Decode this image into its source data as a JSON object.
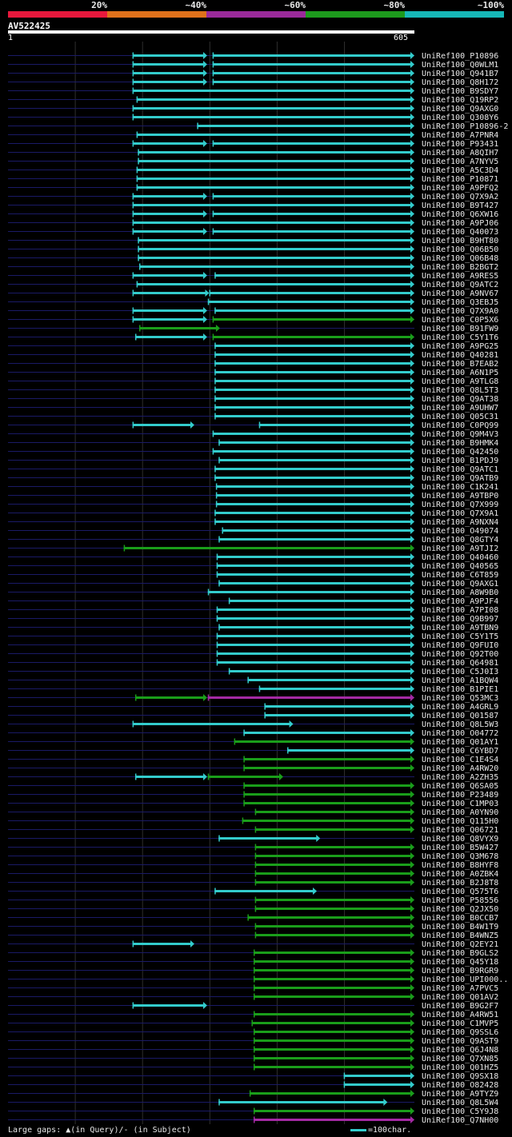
{
  "legend": {
    "segments": [
      {
        "label": "20%",
        "color": "#e8183c"
      },
      {
        "label": "~40%",
        "color": "#e0711b"
      },
      {
        "label": "~60%",
        "color": "#9b2a9b"
      },
      {
        "label": "~80%",
        "color": "#1d9b1d"
      },
      {
        "label": "~100%",
        "color": "#16b8b8"
      }
    ]
  },
  "query": {
    "name": "AV522425",
    "start": "1",
    "end": "605"
  },
  "colors": {
    "cyan": "#33cccc",
    "green": "#1a9e1a",
    "purple": "#a52aa5",
    "track": "#1a1a66",
    "grid": "#2e2e2e"
  },
  "hits": [
    {
      "name": "UniRef100_P10896",
      "segs": [
        [
          186,
          297,
          "c"
        ],
        [
          305,
          605,
          "c"
        ]
      ]
    },
    {
      "name": "UniRef100_Q0WLM1",
      "segs": [
        [
          186,
          297,
          "c"
        ],
        [
          305,
          605,
          "c"
        ]
      ]
    },
    {
      "name": "UniRef100_Q941B7",
      "segs": [
        [
          186,
          297,
          "c"
        ],
        [
          305,
          605,
          "c"
        ]
      ]
    },
    {
      "name": "UniRef100_Q8H172",
      "segs": [
        [
          186,
          297,
          "c"
        ],
        [
          305,
          605,
          "c"
        ]
      ]
    },
    {
      "name": "UniRef100_B9SDY7",
      "segs": [
        [
          186,
          605,
          "c"
        ]
      ]
    },
    {
      "name": "UniRef100_Q19RP2",
      "segs": [
        [
          192,
          605,
          "c"
        ]
      ]
    },
    {
      "name": "UniRef100_Q9AXG0",
      "segs": [
        [
          186,
          605,
          "c"
        ]
      ]
    },
    {
      "name": "UniRef100_Q308Y6",
      "segs": [
        [
          186,
          605,
          "c"
        ]
      ]
    },
    {
      "name": "UniRef100_P10896-2",
      "segs": [
        [
          282,
          605,
          "c"
        ]
      ]
    },
    {
      "name": "UniRef100_A7PNR4",
      "segs": [
        [
          192,
          605,
          "c"
        ]
      ]
    },
    {
      "name": "UniRef100_P93431",
      "segs": [
        [
          186,
          297,
          "c"
        ],
        [
          305,
          605,
          "c"
        ]
      ]
    },
    {
      "name": "UniRef100_A8QIH7",
      "segs": [
        [
          194,
          605,
          "c"
        ]
      ]
    },
    {
      "name": "UniRef100_A7NYV5",
      "segs": [
        [
          194,
          605,
          "c"
        ]
      ]
    },
    {
      "name": "UniRef100_A5C3D4",
      "segs": [
        [
          192,
          605,
          "c"
        ]
      ]
    },
    {
      "name": "UniRef100_P10871",
      "segs": [
        [
          192,
          605,
          "c"
        ]
      ]
    },
    {
      "name": "UniRef100_A9PFQ2",
      "segs": [
        [
          192,
          605,
          "c"
        ]
      ]
    },
    {
      "name": "UniRef100_Q7X9A2",
      "segs": [
        [
          186,
          297,
          "c"
        ],
        [
          305,
          605,
          "c"
        ]
      ]
    },
    {
      "name": "UniRef100_B9T427",
      "segs": [
        [
          186,
          605,
          "c"
        ]
      ]
    },
    {
      "name": "UniRef100_Q6XW16",
      "segs": [
        [
          186,
          297,
          "c"
        ],
        [
          305,
          605,
          "c"
        ]
      ]
    },
    {
      "name": "UniRef100_A9PJ06",
      "segs": [
        [
          186,
          605,
          "c"
        ]
      ]
    },
    {
      "name": "UniRef100_Q40073",
      "segs": [
        [
          186,
          297,
          "c"
        ],
        [
          305,
          605,
          "c"
        ]
      ]
    },
    {
      "name": "UniRef100_B9HT80",
      "segs": [
        [
          194,
          605,
          "c"
        ]
      ]
    },
    {
      "name": "UniRef100_Q06B50",
      "segs": [
        [
          194,
          605,
          "c"
        ]
      ]
    },
    {
      "name": "UniRef100_Q06B48",
      "segs": [
        [
          194,
          605,
          "c"
        ]
      ]
    },
    {
      "name": "UniRef100_B2BGT2",
      "segs": [
        [
          196,
          605,
          "c"
        ]
      ]
    },
    {
      "name": "UniRef100_A9RES5",
      "segs": [
        [
          186,
          297,
          "c"
        ],
        [
          308,
          605,
          "c"
        ]
      ]
    },
    {
      "name": "UniRef100_Q9ATC2",
      "segs": [
        [
          192,
          605,
          "c"
        ]
      ]
    },
    {
      "name": "UniRef100_A9NV67",
      "segs": [
        [
          186,
          300,
          "c"
        ],
        [
          300,
          605,
          "c"
        ]
      ]
    },
    {
      "name": "UniRef100_Q3EBJ5",
      "segs": [
        [
          298,
          605,
          "c"
        ]
      ]
    },
    {
      "name": "UniRef100_Q7X9A0",
      "segs": [
        [
          186,
          297,
          "c"
        ],
        [
          308,
          605,
          "c"
        ]
      ]
    },
    {
      "name": "UniRef100_C0P5X6",
      "segs": [
        [
          186,
          297,
          "c"
        ],
        [
          305,
          605,
          "g"
        ]
      ]
    },
    {
      "name": "UniRef100_B91FW9",
      "segs": [
        [
          196,
          316,
          "g"
        ]
      ]
    },
    {
      "name": "UniRef100_C5Y1T6",
      "segs": [
        [
          190,
          297,
          "c"
        ],
        [
          305,
          605,
          "g"
        ]
      ]
    },
    {
      "name": "UniRef100_A9PG25",
      "segs": [
        [
          308,
          605,
          "c"
        ]
      ]
    },
    {
      "name": "UniRef100_Q40281",
      "segs": [
        [
          308,
          605,
          "c"
        ]
      ]
    },
    {
      "name": "UniRef100_B7EAB2",
      "segs": [
        [
          308,
          605,
          "c"
        ]
      ]
    },
    {
      "name": "UniRef100_A6N1P5",
      "segs": [
        [
          308,
          605,
          "c"
        ]
      ]
    },
    {
      "name": "UniRef100_A9TLG8",
      "segs": [
        [
          308,
          605,
          "c"
        ]
      ]
    },
    {
      "name": "UniRef100_Q8L5T3",
      "segs": [
        [
          308,
          605,
          "c"
        ]
      ]
    },
    {
      "name": "UniRef100_Q9AT38",
      "segs": [
        [
          308,
          605,
          "c"
        ]
      ]
    },
    {
      "name": "UniRef100_A9UHW7",
      "segs": [
        [
          308,
          605,
          "c"
        ]
      ]
    },
    {
      "name": "UniRef100_Q05C31",
      "segs": [
        [
          308,
          605,
          "c"
        ]
      ]
    },
    {
      "name": "UniRef100_C0PQ99",
      "segs": [
        [
          186,
          278,
          "c"
        ],
        [
          374,
          605,
          "c"
        ]
      ]
    },
    {
      "name": "UniRef100_Q9M4V3",
      "segs": [
        [
          305,
          605,
          "c"
        ]
      ]
    },
    {
      "name": "UniRef100_B9HMK4",
      "segs": [
        [
          314,
          605,
          "c"
        ]
      ]
    },
    {
      "name": "UniRef100_Q42450",
      "segs": [
        [
          305,
          605,
          "c"
        ]
      ]
    },
    {
      "name": "UniRef100_B1PDJ9",
      "segs": [
        [
          314,
          605,
          "c"
        ]
      ]
    },
    {
      "name": "UniRef100_Q9ATC1",
      "segs": [
        [
          308,
          605,
          "c"
        ]
      ]
    },
    {
      "name": "UniRef100_Q9ATB9",
      "segs": [
        [
          308,
          605,
          "c"
        ]
      ]
    },
    {
      "name": "UniRef100_C1K241",
      "segs": [
        [
          310,
          605,
          "c"
        ]
      ]
    },
    {
      "name": "UniRef100_A9TBP0",
      "segs": [
        [
          310,
          605,
          "c"
        ]
      ]
    },
    {
      "name": "UniRef100_Q7X999",
      "segs": [
        [
          310,
          605,
          "c"
        ]
      ]
    },
    {
      "name": "UniRef100_Q7X9A1",
      "segs": [
        [
          308,
          605,
          "c"
        ]
      ]
    },
    {
      "name": "UniRef100_A9NXN4",
      "segs": [
        [
          308,
          605,
          "c"
        ]
      ]
    },
    {
      "name": "UniRef100_O49074",
      "segs": [
        [
          319,
          605,
          "c"
        ]
      ]
    },
    {
      "name": "UniRef100_Q8GTY4",
      "segs": [
        [
          314,
          605,
          "c"
        ]
      ]
    },
    {
      "name": "UniRef100_A9TJI2",
      "segs": [
        [
          173,
          605,
          "g"
        ]
      ]
    },
    {
      "name": "UniRef100_Q40460",
      "segs": [
        [
          311,
          605,
          "c"
        ]
      ]
    },
    {
      "name": "UniRef100_Q40565",
      "segs": [
        [
          311,
          605,
          "c"
        ]
      ]
    },
    {
      "name": "UniRef100_C6T859",
      "segs": [
        [
          311,
          605,
          "c"
        ]
      ]
    },
    {
      "name": "UniRef100_Q9AXG1",
      "segs": [
        [
          314,
          605,
          "c"
        ]
      ]
    },
    {
      "name": "UniRef100_A8W9B0",
      "segs": [
        [
          298,
          605,
          "c"
        ]
      ]
    },
    {
      "name": "UniRef100_A9PJF4",
      "segs": [
        [
          329,
          605,
          "c"
        ]
      ]
    },
    {
      "name": "UniRef100_A7PI08",
      "segs": [
        [
          311,
          605,
          "c"
        ]
      ]
    },
    {
      "name": "UniRef100_Q9B997",
      "segs": [
        [
          311,
          605,
          "c"
        ]
      ]
    },
    {
      "name": "UniRef100_A9TBN9",
      "segs": [
        [
          314,
          605,
          "c"
        ]
      ]
    },
    {
      "name": "UniRef100_C5Y1T5",
      "segs": [
        [
          311,
          605,
          "c"
        ]
      ]
    },
    {
      "name": "UniRef100_Q9FUI0",
      "segs": [
        [
          311,
          605,
          "c"
        ]
      ]
    },
    {
      "name": "UniRef100_Q92T00",
      "segs": [
        [
          311,
          605,
          "c"
        ]
      ]
    },
    {
      "name": "UniRef100_Q64981",
      "segs": [
        [
          311,
          605,
          "c"
        ]
      ]
    },
    {
      "name": "UniRef100_C5J0I3",
      "segs": [
        [
          329,
          605,
          "c"
        ]
      ]
    },
    {
      "name": "UniRef100_A1BQW4",
      "segs": [
        [
          357,
          605,
          "c"
        ]
      ]
    },
    {
      "name": "UniRef100_B1PIE1",
      "segs": [
        [
          374,
          605,
          "c"
        ]
      ]
    },
    {
      "name": "UniRef100_Q53MC3",
      "segs": [
        [
          190,
          297,
          "g"
        ],
        [
          298,
          605,
          "p"
        ]
      ]
    },
    {
      "name": "UniRef100_A4GRL9",
      "segs": [
        [
          382,
          605,
          "c"
        ]
      ]
    },
    {
      "name": "UniRef100_Q01587",
      "segs": [
        [
          382,
          605,
          "c"
        ]
      ]
    },
    {
      "name": "UniRef100_Q8L5W3",
      "segs": [
        [
          186,
          425,
          "c"
        ]
      ]
    },
    {
      "name": "UniRef100_O04772",
      "segs": [
        [
          351,
          605,
          "c"
        ]
      ]
    },
    {
      "name": "UniRef100_Q01AY1",
      "segs": [
        [
          337,
          605,
          "g"
        ]
      ]
    },
    {
      "name": "UniRef100_C6YBD7",
      "segs": [
        [
          416,
          605,
          "c"
        ]
      ]
    },
    {
      "name": "UniRef100_C1E4S4",
      "segs": [
        [
          351,
          605,
          "g"
        ]
      ]
    },
    {
      "name": "UniRef100_A4RW20",
      "segs": [
        [
          351,
          605,
          "g"
        ]
      ]
    },
    {
      "name": "UniRef100_A2ZH35",
      "segs": [
        [
          190,
          297,
          "c"
        ],
        [
          298,
          410,
          "g"
        ]
      ]
    },
    {
      "name": "UniRef100_Q6SA05",
      "segs": [
        [
          351,
          605,
          "g"
        ]
      ]
    },
    {
      "name": "UniRef100_P23489",
      "segs": [
        [
          351,
          605,
          "g"
        ]
      ]
    },
    {
      "name": "UniRef100_C1MP03",
      "segs": [
        [
          351,
          605,
          "g"
        ]
      ]
    },
    {
      "name": "UniRef100_A0YN90",
      "segs": [
        [
          368,
          605,
          "g"
        ]
      ]
    },
    {
      "name": "UniRef100_Q115H0",
      "segs": [
        [
          349,
          605,
          "g"
        ]
      ]
    },
    {
      "name": "UniRef100_Q06721",
      "segs": [
        [
          368,
          605,
          "g"
        ]
      ]
    },
    {
      "name": "UniRef100_Q8VYX9",
      "segs": [
        [
          314,
          465,
          "c"
        ]
      ]
    },
    {
      "name": "UniRef100_B5W427",
      "segs": [
        [
          368,
          605,
          "g"
        ]
      ]
    },
    {
      "name": "UniRef100_Q3M678",
      "segs": [
        [
          368,
          605,
          "g"
        ]
      ]
    },
    {
      "name": "UniRef100_B8HYF8",
      "segs": [
        [
          368,
          605,
          "g"
        ]
      ]
    },
    {
      "name": "UniRef100_A0ZBK4",
      "segs": [
        [
          368,
          605,
          "g"
        ]
      ]
    },
    {
      "name": "UniRef100_B2J8T8",
      "segs": [
        [
          368,
          605,
          "g"
        ]
      ]
    },
    {
      "name": "UniRef100_Q575T6",
      "segs": [
        [
          308,
          460,
          "c"
        ]
      ]
    },
    {
      "name": "UniRef100_P58556",
      "segs": [
        [
          368,
          605,
          "g"
        ]
      ]
    },
    {
      "name": "UniRef100_Q2JX50",
      "segs": [
        [
          368,
          605,
          "g"
        ]
      ]
    },
    {
      "name": "UniRef100_B0CCB7",
      "segs": [
        [
          357,
          605,
          "g"
        ]
      ]
    },
    {
      "name": "UniRef100_B4W1T9",
      "segs": [
        [
          368,
          605,
          "g"
        ]
      ]
    },
    {
      "name": "UniRef100_B4WNZ5",
      "segs": [
        [
          368,
          605,
          "g"
        ]
      ]
    },
    {
      "name": "UniRef100_Q2EY21",
      "segs": [
        [
          186,
          278,
          "c"
        ]
      ]
    },
    {
      "name": "UniRef100_B9GLS2",
      "segs": [
        [
          366,
          605,
          "g"
        ]
      ]
    },
    {
      "name": "UniRef100_Q45Y18",
      "segs": [
        [
          366,
          605,
          "g"
        ]
      ]
    },
    {
      "name": "UniRef100_B9RGR9",
      "segs": [
        [
          366,
          605,
          "g"
        ]
      ]
    },
    {
      "name": "UniRef100_UPI000..",
      "segs": [
        [
          366,
          605,
          "g"
        ]
      ]
    },
    {
      "name": "UniRef100_A7PVC5",
      "segs": [
        [
          366,
          605,
          "g"
        ]
      ]
    },
    {
      "name": "UniRef100_Q01AV2",
      "segs": [
        [
          366,
          605,
          "g"
        ]
      ]
    },
    {
      "name": "UniRef100_B9G2F7",
      "segs": [
        [
          186,
          297,
          "c"
        ]
      ]
    },
    {
      "name": "UniRef100_A4RW51",
      "segs": [
        [
          366,
          605,
          "g"
        ]
      ]
    },
    {
      "name": "UniRef100_C1MVP5",
      "segs": [
        [
          363,
          605,
          "g"
        ]
      ]
    },
    {
      "name": "UniRef100_Q9SSL6",
      "segs": [
        [
          366,
          605,
          "g"
        ]
      ]
    },
    {
      "name": "UniRef100_Q9AST9",
      "segs": [
        [
          366,
          605,
          "g"
        ]
      ]
    },
    {
      "name": "UniRef100_Q6J4N8",
      "segs": [
        [
          366,
          605,
          "g"
        ]
      ]
    },
    {
      "name": "UniRef100_Q7XN85",
      "segs": [
        [
          366,
          605,
          "g"
        ]
      ]
    },
    {
      "name": "UniRef100_Q01HZ5",
      "segs": [
        [
          366,
          605,
          "g"
        ]
      ]
    },
    {
      "name": "UniRef100_Q9SX18",
      "segs": [
        [
          500,
          605,
          "c"
        ]
      ]
    },
    {
      "name": "UniRef100_O82428",
      "segs": [
        [
          500,
          605,
          "c"
        ]
      ]
    },
    {
      "name": "UniRef100_A9TYZ9",
      "segs": [
        [
          360,
          605,
          "g"
        ]
      ]
    },
    {
      "name": "UniRef100_Q8L5W4",
      "segs": [
        [
          314,
          565,
          "c"
        ]
      ]
    },
    {
      "name": "UniRef100_C5Y9J8",
      "segs": [
        [
          366,
          605,
          "g"
        ]
      ]
    },
    {
      "name": "UniRef100_Q7NH00",
      "segs": [
        [
          366,
          605,
          "p"
        ]
      ]
    }
  ],
  "footer": {
    "gaps_text": "Large gaps: ▲(in Query)/- (in Subject)",
    "scale_text": "=100char."
  }
}
